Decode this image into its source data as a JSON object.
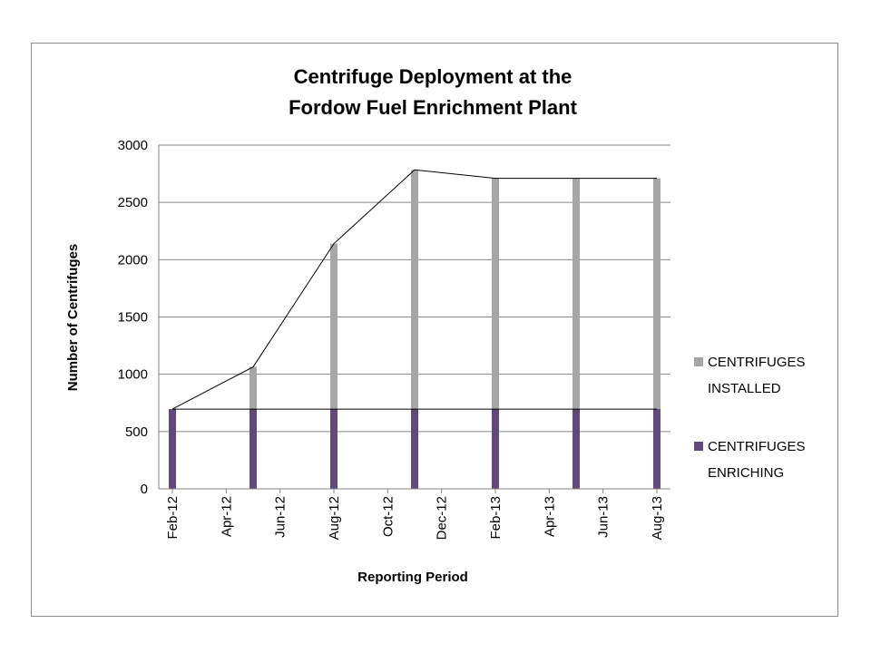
{
  "chart_data": {
    "type": "bar",
    "title_lines": [
      "Centrifuge Deployment at the",
      "Fordow Fuel Enrichment Plant"
    ],
    "xlabel": "Reporting Period",
    "ylabel": "Number of Centrifuges",
    "ylim": [
      0,
      3000
    ],
    "y_ticks": [
      0,
      500,
      1000,
      1500,
      2000,
      2500,
      3000
    ],
    "x_start_month": "2012-02",
    "x_end_month": "2013-08",
    "x_tick_labels": [
      "Feb-12",
      "Apr-12",
      "Jun-12",
      "Aug-12",
      "Oct-12",
      "Dec-12",
      "Feb-13",
      "Apr-13",
      "Jun-13",
      "Aug-13"
    ],
    "categories": [
      "Feb-12",
      "May-12",
      "Aug-12",
      "Nov-12",
      "Feb-13",
      "May-13",
      "Aug-13"
    ],
    "series": [
      {
        "name": "CENTRIFUGES INSTALLED",
        "color": "#a6a6a6",
        "values": [
          696,
          1064,
          2140,
          2784,
          2710,
          2710,
          2710
        ]
      },
      {
        "name": "CENTRIFUGES ENRICHING",
        "color": "#604a7b",
        "values": [
          696,
          696,
          696,
          696,
          696,
          696,
          696
        ]
      }
    ],
    "grid": true,
    "legend_position": "right"
  }
}
